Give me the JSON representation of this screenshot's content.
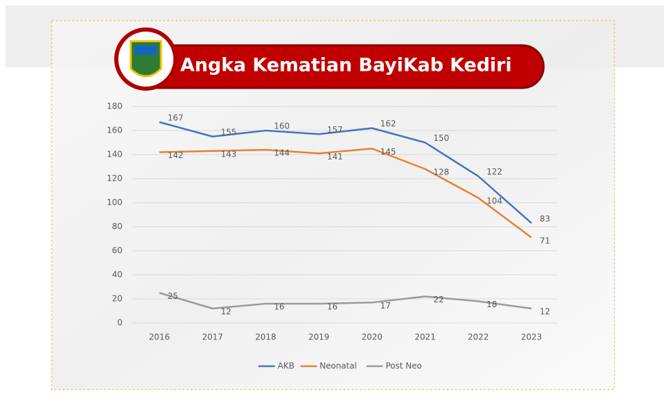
{
  "chart_data": {
    "type": "line",
    "title": "Angka Kematian BayiKab Kediri",
    "categories": [
      "2016",
      "2017",
      "2018",
      "2019",
      "2020",
      "2021",
      "2022",
      "2023"
    ],
    "series": [
      {
        "name": "AKB",
        "color": "#4472c4",
        "values": [
          167,
          155,
          160,
          157,
          162,
          150,
          122,
          83
        ]
      },
      {
        "name": "Neonatal",
        "color": "#ed7d31",
        "values": [
          142,
          143,
          144,
          141,
          145,
          128,
          104,
          71
        ]
      },
      {
        "name": "Post Neo",
        "color": "#9a9a9a",
        "values": [
          25,
          12,
          16,
          16,
          17,
          22,
          18,
          12
        ]
      }
    ],
    "ylim": [
      0,
      180
    ],
    "yticks": [
      0,
      20,
      40,
      60,
      80,
      100,
      120,
      140,
      160,
      180
    ],
    "grid": true,
    "legend": "bottom",
    "data_labels": true
  }
}
